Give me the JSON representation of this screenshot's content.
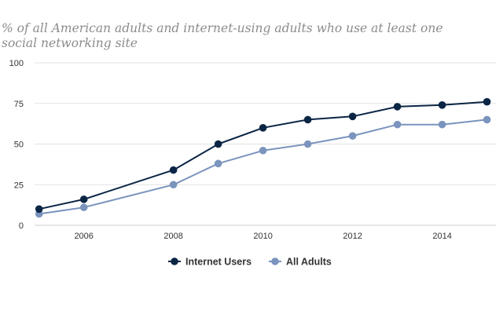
{
  "chart_data": {
    "type": "line",
    "title": "% of all American adults and internet-using adults who use at least one social networking site",
    "xlabel": "",
    "ylabel": "",
    "x": [
      2005,
      2006,
      2008,
      2009,
      2010,
      2011,
      2012,
      2013,
      2014,
      2015
    ],
    "xlim": [
      2004.9,
      2015.2
    ],
    "ylim": [
      0,
      100
    ],
    "x_ticks": [
      "2006",
      "2008",
      "2010",
      "2012",
      "2014"
    ],
    "y_ticks": [
      "0",
      "25",
      "50",
      "75",
      "100"
    ],
    "grid": "horizontal",
    "legend_position": "bottom-center",
    "series": [
      {
        "name": "Internet Users",
        "color": "#0b2545",
        "values": [
          10,
          16,
          34,
          50,
          60,
          65,
          67,
          73,
          74,
          76
        ]
      },
      {
        "name": "All Adults",
        "color": "#7a94bd",
        "values": [
          7,
          11,
          25,
          38,
          46,
          50,
          55,
          62,
          62,
          65
        ]
      }
    ]
  }
}
